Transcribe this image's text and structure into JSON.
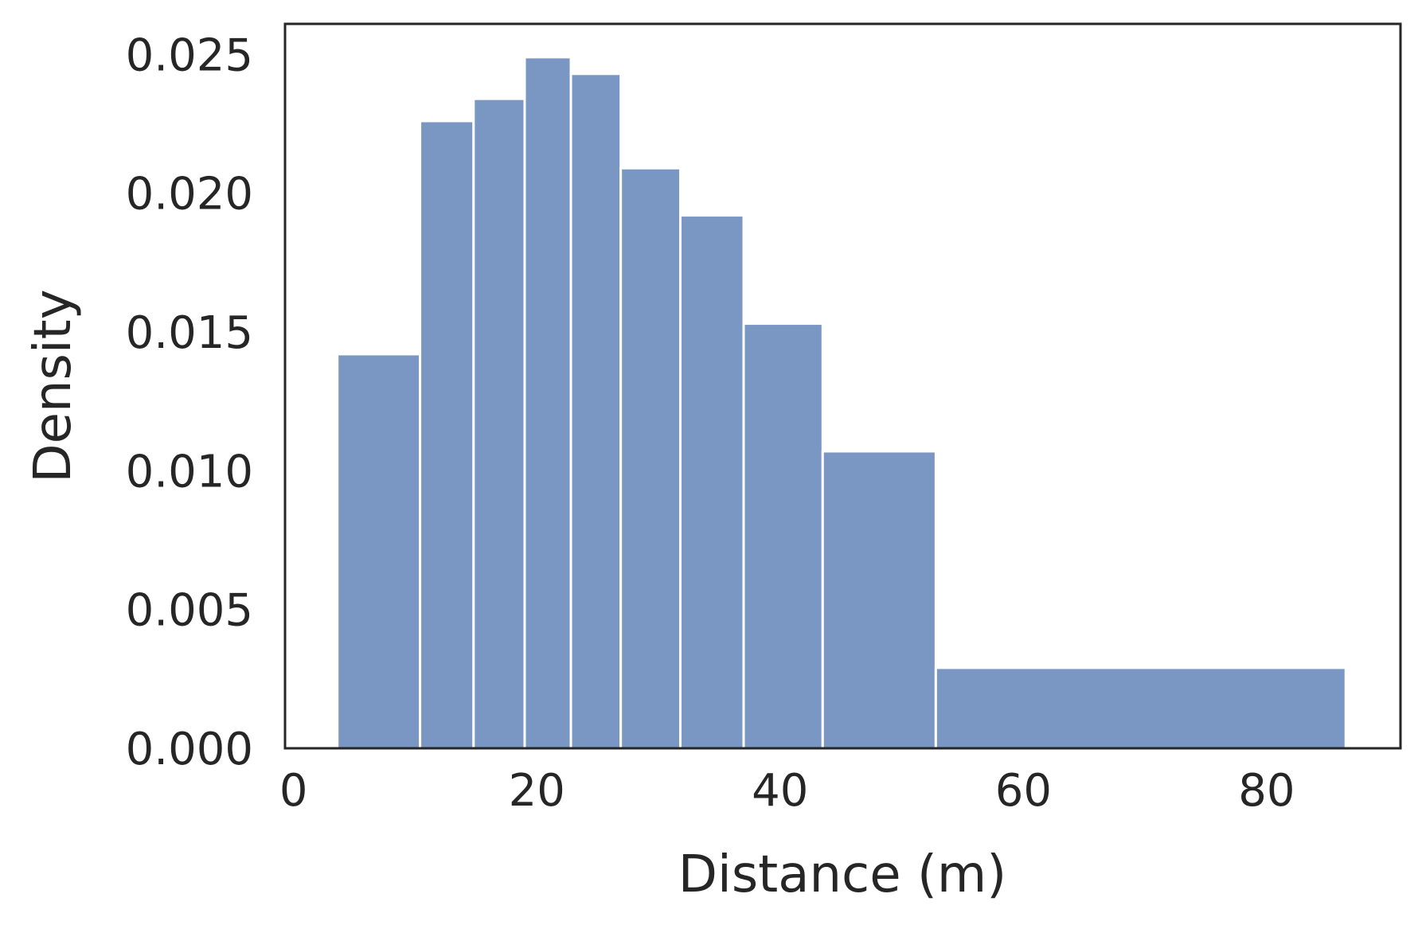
{
  "chart_data": {
    "type": "bar",
    "subtype": "histogram",
    "title": "",
    "xlabel": "Distance (m)",
    "ylabel": "Density",
    "xlim": [
      -0.7,
      91
    ],
    "ylim": [
      0,
      0.0261
    ],
    "grid": false,
    "legend": "none",
    "bar_color": "#7a97c4",
    "x_ticks": [
      {
        "value": 0,
        "label": "0"
      },
      {
        "value": 20,
        "label": "20"
      },
      {
        "value": 40,
        "label": "40"
      },
      {
        "value": 60,
        "label": "60"
      },
      {
        "value": 80,
        "label": "80"
      }
    ],
    "y_ticks": [
      {
        "value": 0.0,
        "label": "0.000"
      },
      {
        "value": 0.005,
        "label": "0.005"
      },
      {
        "value": 0.01,
        "label": "0.010"
      },
      {
        "value": 0.015,
        "label": "0.015"
      },
      {
        "value": 0.02,
        "label": "0.020"
      },
      {
        "value": 0.025,
        "label": "0.025"
      }
    ],
    "bins": [
      {
        "x0": 3.6,
        "x1": 10.4,
        "value": 0.0142
      },
      {
        "x0": 10.4,
        "x1": 14.8,
        "value": 0.0226
      },
      {
        "x0": 14.8,
        "x1": 19.0,
        "value": 0.0234
      },
      {
        "x0": 19.0,
        "x1": 22.8,
        "value": 0.0249
      },
      {
        "x0": 22.8,
        "x1": 26.9,
        "value": 0.0243
      },
      {
        "x0": 26.9,
        "x1": 31.8,
        "value": 0.0209
      },
      {
        "x0": 31.8,
        "x1": 37.0,
        "value": 0.0192
      },
      {
        "x0": 37.0,
        "x1": 43.5,
        "value": 0.0153
      },
      {
        "x0": 43.5,
        "x1": 52.8,
        "value": 0.0107
      },
      {
        "x0": 52.8,
        "x1": 86.5,
        "value": 0.0029
      }
    ]
  }
}
